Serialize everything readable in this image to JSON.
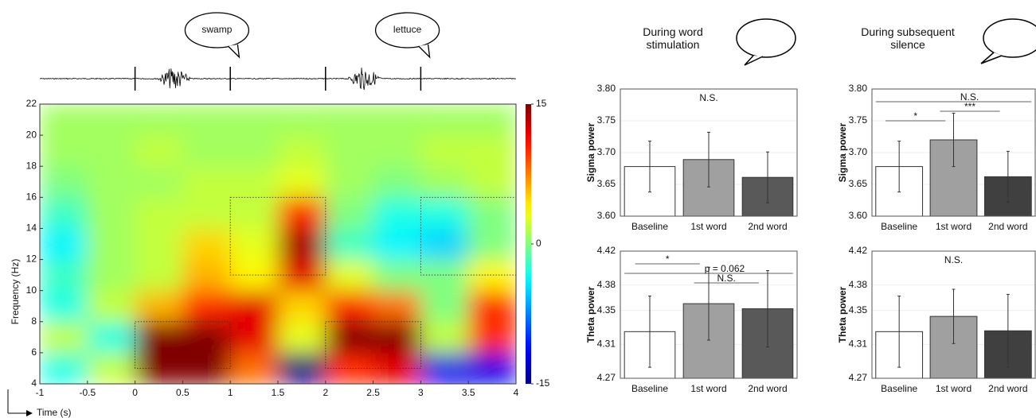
{
  "column_titles": [
    "During word stimulation",
    "During subsequent silence"
  ],
  "chart_data": [
    {
      "type": "heatmap",
      "xlabel": "Time (s)",
      "ylabel": "Frequency (Hz)",
      "xlim": [
        -1,
        4
      ],
      "ylim": [
        4,
        22
      ],
      "xticks": [
        -1,
        -0.5,
        0,
        0.5,
        1,
        1.5,
        2,
        2.5,
        3,
        3.5,
        4
      ],
      "yticks": [
        4,
        6,
        8,
        10,
        12,
        14,
        16,
        18,
        20,
        22
      ],
      "xbins": [
        -1,
        -0.5,
        0,
        0.5,
        1,
        1.5,
        2,
        2.5,
        3,
        3.5,
        4
      ],
      "ybins": [
        4,
        6,
        8,
        10,
        12,
        14,
        16,
        18,
        20,
        22
      ],
      "z": [
        [
          -3,
          2,
          15,
          15,
          8,
          -15,
          10,
          12,
          -12,
          -12
        ],
        [
          2,
          -3,
          15,
          15,
          12,
          3,
          15,
          15,
          2,
          10
        ],
        [
          -3,
          2,
          6,
          10,
          12,
          5,
          10,
          8,
          0,
          10
        ],
        [
          -2,
          1,
          2,
          6,
          4,
          12,
          3,
          0,
          0,
          4
        ],
        [
          -4,
          1,
          2,
          5,
          3,
          14,
          -2,
          -4,
          -5,
          0
        ],
        [
          -2,
          1,
          2,
          2,
          2,
          10,
          0,
          -3,
          -3,
          0
        ],
        [
          0,
          1,
          1,
          2,
          2,
          3,
          1,
          0,
          1,
          2
        ],
        [
          1,
          1,
          2,
          1,
          1,
          2,
          1,
          1,
          2,
          2
        ],
        [
          1,
          1,
          1,
          1,
          1,
          1,
          1,
          1,
          1,
          1
        ]
      ],
      "colormap": "jet",
      "clim": [
        -15,
        15
      ],
      "cticks": [
        -15,
        0,
        15
      ],
      "boxes": [
        {
          "x": [
            0,
            1
          ],
          "y": [
            5,
            8
          ]
        },
        {
          "x": [
            1,
            2
          ],
          "y": [
            11,
            16
          ]
        },
        {
          "x": [
            2,
            3
          ],
          "y": [
            5,
            8
          ]
        },
        {
          "x": [
            3,
            4
          ],
          "y": [
            11,
            16
          ]
        }
      ],
      "words": [
        {
          "text": "swamp",
          "x": [
            0,
            1
          ]
        },
        {
          "text": "lettuce",
          "x": [
            2,
            3
          ]
        }
      ]
    },
    {
      "type": "bar",
      "ylabel": "Sigma power",
      "categories": [
        "Baseline",
        "1st word",
        "2nd word"
      ],
      "values": [
        3.678,
        3.689,
        3.661
      ],
      "errors": [
        0.04,
        0.043,
        0.04
      ],
      "colors": [
        "#ffffff",
        "#a0a0a0",
        "#595959"
      ],
      "ylim": [
        3.6,
        3.8
      ],
      "yticks": [
        {
          "value": 3.6,
          "label": "3.60"
        },
        3.65,
        {
          "value": 3.7,
          "label": "3.70"
        },
        3.75,
        {
          "value": 3.8,
          "label": "3.80"
        }
      ],
      "annotations": [
        {
          "text": "N.S."
        }
      ]
    },
    {
      "type": "bar",
      "ylabel": "Sigma power",
      "categories": [
        "Baseline",
        "1st word",
        "2nd word"
      ],
      "values": [
        3.678,
        3.72,
        3.662
      ],
      "errors": [
        0.04,
        0.042,
        0.04
      ],
      "colors": [
        "#ffffff",
        "#a0a0a0",
        "#404040"
      ],
      "ylim": [
        3.6,
        3.8
      ],
      "yticks": [
        {
          "value": 3.6,
          "label": "3.60"
        },
        3.65,
        {
          "value": 3.7,
          "label": "3.70"
        },
        3.75,
        {
          "value": 3.8,
          "label": "3.80"
        }
      ],
      "annotations": [
        {
          "text": "*",
          "between": [
            "Baseline",
            "1st word"
          ]
        },
        {
          "text": "***",
          "between": [
            "1st word",
            "2nd word"
          ]
        },
        {
          "text": "N.S.",
          "between": [
            "Baseline",
            "2nd word"
          ]
        }
      ]
    },
    {
      "type": "bar",
      "ylabel": "Theta power",
      "categories": [
        "Baseline",
        "1st word",
        "2nd word"
      ],
      "values": [
        4.325,
        4.358,
        4.352
      ],
      "errors": [
        0.042,
        0.043,
        0.045
      ],
      "colors": [
        "#ffffff",
        "#a0a0a0",
        "#595959"
      ],
      "ylim": [
        4.27,
        4.42
      ],
      "yticks": [
        4.27,
        4.31,
        4.35,
        4.38,
        4.42
      ],
      "annotations": [
        {
          "text": "N.S.",
          "between": [
            "1st word",
            "2nd word"
          ]
        },
        {
          "text": "p = 0.062",
          "between": [
            "Baseline",
            "2nd word"
          ]
        },
        {
          "text": "*",
          "between": [
            "Baseline",
            "1st word"
          ]
        }
      ]
    },
    {
      "type": "bar",
      "ylabel": "Theta power",
      "categories": [
        "Baseline",
        "1st word",
        "2nd word"
      ],
      "values": [
        4.325,
        4.343,
        4.326
      ],
      "errors": [
        0.042,
        0.032,
        0.043
      ],
      "colors": [
        "#ffffff",
        "#a0a0a0",
        "#404040"
      ],
      "ylim": [
        4.27,
        4.42
      ],
      "yticks": [
        4.27,
        4.31,
        4.35,
        4.38,
        4.42
      ],
      "annotations": [
        {
          "text": "N.S."
        }
      ]
    }
  ]
}
